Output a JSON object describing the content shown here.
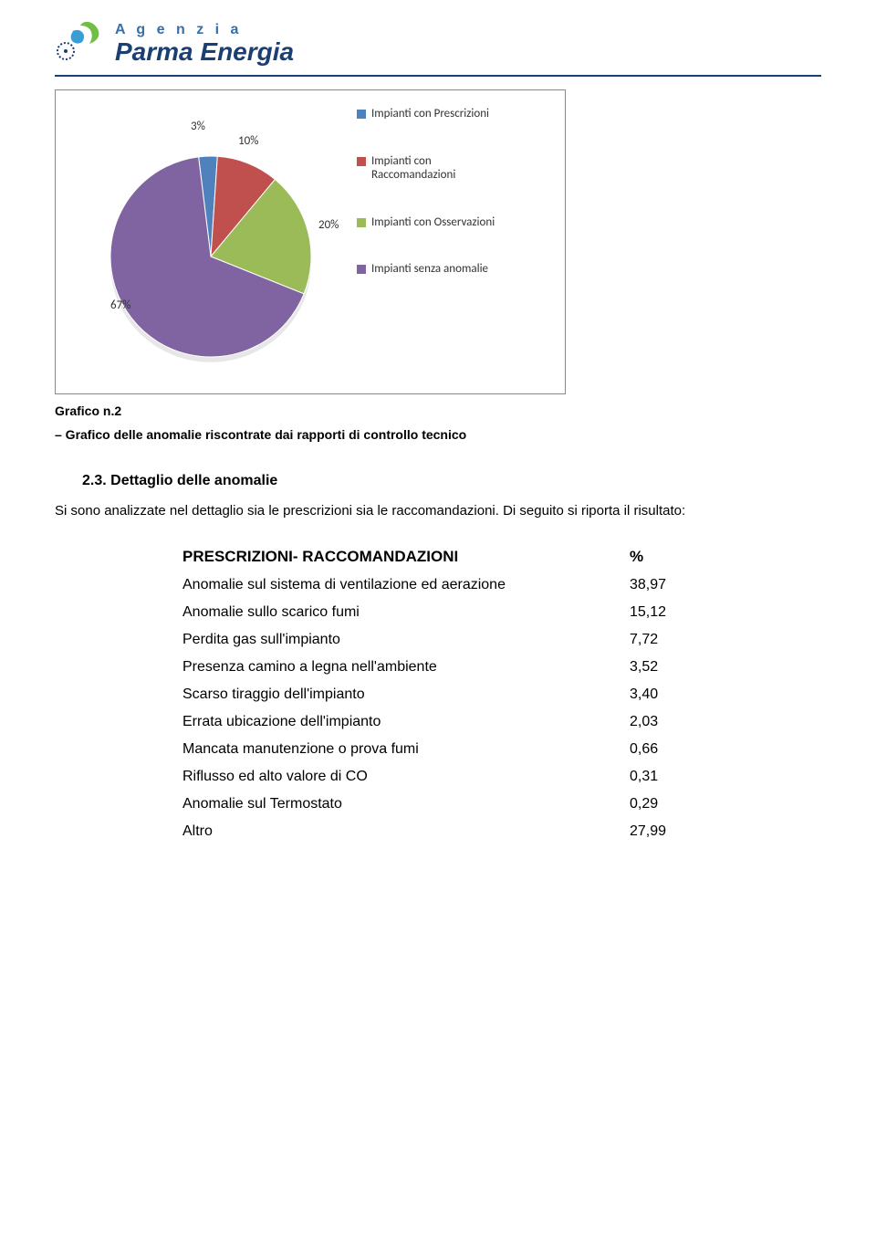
{
  "logo": {
    "line1": "A g e n z i a",
    "line2": "Parma Energia"
  },
  "chart": {
    "type": "pie",
    "background_color": "#ffffff",
    "border_color": "#888888",
    "slices": [
      {
        "label": "Impianti con Prescrizioni",
        "value": 3,
        "display": "3%",
        "color": "#4f81bd"
      },
      {
        "label": "Impianti con Raccomandazioni",
        "value": 10,
        "display": "10%",
        "color": "#c0504d"
      },
      {
        "label": "Impianti con Osservazioni",
        "value": 20,
        "display": "20%",
        "color": "#9bbb59"
      },
      {
        "label": "Impianti senza anomalie",
        "value": 67,
        "display": "67%",
        "color": "#8064a2"
      }
    ],
    "legend_fontsize": 13,
    "label_fontsize": 13,
    "label_color": "#333333",
    "slice_border_color": "#ffffff",
    "slice_border_width": 1
  },
  "caption": {
    "title": "Grafico n.2",
    "subtitle": "– Grafico delle anomalie riscontrate dai rapporti di controllo tecnico"
  },
  "section": {
    "heading": "2.3. Dettaglio delle anomalie",
    "body": "Si sono analizzate nel dettaglio sia le prescrizioni sia le raccomandazioni. Di seguito si riporta il risultato:"
  },
  "table": {
    "header": {
      "c1": "PRESCRIZIONI- RACCOMANDAZIONI",
      "c2": "%"
    },
    "rows": [
      {
        "c1": "Anomalie sul sistema di ventilazione ed aerazione",
        "c2": "38,97"
      },
      {
        "c1": "Anomalie sullo scarico fumi",
        "c2": "15,12"
      },
      {
        "c1": "Perdita gas sull'impianto",
        "c2": "7,72"
      },
      {
        "c1": "Presenza camino a legna nell'ambiente",
        "c2": "3,52"
      },
      {
        "c1": "Scarso tiraggio dell'impianto",
        "c2": "3,40"
      },
      {
        "c1": "Errata ubicazione dell'impianto",
        "c2": "2,03"
      },
      {
        "c1": "Mancata manutenzione o prova fumi",
        "c2": "0,66"
      },
      {
        "c1": "Riflusso ed alto valore di CO",
        "c2": "0,31"
      },
      {
        "c1": "Anomalie sul Termostato",
        "c2": "0,29"
      },
      {
        "c1": "Altro",
        "c2": "27,99"
      }
    ],
    "header_fontsize": 17,
    "cell_fontsize": 16
  }
}
